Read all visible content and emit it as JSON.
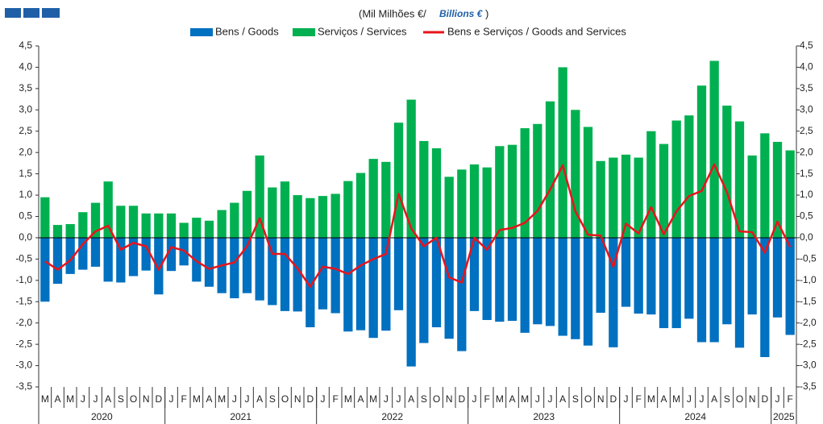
{
  "chart_data": {
    "type": "bar_line",
    "title": "(Mil Milhões  €/",
    "title_italic": "Billions €",
    "title_close": ")",
    "categories": [
      "M",
      "A",
      "M",
      "J",
      "J",
      "A",
      "S",
      "O",
      "N",
      "D",
      "J",
      "F",
      "M",
      "A",
      "M",
      "J",
      "J",
      "A",
      "S",
      "O",
      "N",
      "D",
      "J",
      "F",
      "M",
      "A",
      "M",
      "J",
      "J",
      "A",
      "S",
      "O",
      "N",
      "D",
      "J",
      "F",
      "M",
      "A",
      "M",
      "J",
      "J",
      "A",
      "S",
      "O",
      "N",
      "D",
      "J",
      "F",
      "M",
      "A",
      "M",
      "J",
      "J",
      "A",
      "S",
      "O",
      "N",
      "D",
      "J",
      "F"
    ],
    "years": [
      "2020",
      "2021",
      "2022",
      "2023",
      "2024",
      "2025"
    ],
    "series": [
      {
        "name": "Bens / Goods",
        "color": "#0070c0",
        "kind": "bar",
        "values": [
          -1.5,
          -1.08,
          -0.85,
          -0.75,
          -0.68,
          -1.03,
          -1.05,
          -0.9,
          -0.77,
          -1.33,
          -0.78,
          -0.65,
          -1.03,
          -1.15,
          -1.3,
          -1.42,
          -1.3,
          -1.47,
          -1.58,
          -1.72,
          -1.73,
          -2.1,
          -1.68,
          -1.77,
          -2.2,
          -2.17,
          -2.35,
          -2.18,
          -1.7,
          -3.02,
          -2.47,
          -2.1,
          -2.37,
          -2.66,
          -1.72,
          -1.93,
          -1.97,
          -1.95,
          -2.23,
          -2.03,
          -2.07,
          -2.3,
          -2.38,
          -2.53,
          -1.76,
          -2.57,
          -1.62,
          -1.78,
          -1.8,
          -2.12,
          -2.12,
          -1.9,
          -2.45,
          -2.45,
          -2.03,
          -2.58,
          -1.8,
          -2.8,
          -1.87,
          -2.28
        ]
      },
      {
        "name": "Serviços / Services",
        "color": "#00b050",
        "kind": "bar",
        "values": [
          0.95,
          0.3,
          0.32,
          0.6,
          0.82,
          1.32,
          0.75,
          0.75,
          0.57,
          0.57,
          0.57,
          0.35,
          0.47,
          0.4,
          0.65,
          0.82,
          1.1,
          1.93,
          1.18,
          1.32,
          1.0,
          0.93,
          0.98,
          1.03,
          1.33,
          1.52,
          1.85,
          1.78,
          2.7,
          3.24,
          2.27,
          2.1,
          1.43,
          1.6,
          1.72,
          1.65,
          2.15,
          2.18,
          2.57,
          2.67,
          3.2,
          4.0,
          3.0,
          2.6,
          1.8,
          1.88,
          1.95,
          1.88,
          2.5,
          2.2,
          2.75,
          2.87,
          3.57,
          4.15,
          3.1,
          2.73,
          1.93,
          2.45,
          2.25,
          2.05
        ]
      },
      {
        "name": "Bens e Serviços  / Goods and Services",
        "color": "#e8141b",
        "kind": "line",
        "values": [
          -0.55,
          -0.75,
          -0.53,
          -0.15,
          0.15,
          0.28,
          -0.28,
          -0.12,
          -0.2,
          -0.75,
          -0.22,
          -0.3,
          -0.55,
          -0.73,
          -0.65,
          -0.58,
          -0.2,
          0.46,
          -0.38,
          -0.38,
          -0.72,
          -1.15,
          -0.68,
          -0.73,
          -0.85,
          -0.65,
          -0.5,
          -0.38,
          1.03,
          0.22,
          -0.2,
          0.0,
          -0.93,
          -1.05,
          0.0,
          -0.28,
          0.18,
          0.23,
          0.35,
          0.63,
          1.13,
          1.7,
          0.62,
          0.07,
          0.05,
          -0.68,
          0.33,
          0.1,
          0.72,
          0.08,
          0.62,
          0.98,
          1.1,
          1.72,
          1.07,
          0.15,
          0.13,
          -0.35,
          0.38,
          -0.22
        ]
      }
    ],
    "ylim": [
      -3.5,
      4.5
    ],
    "yticks": [
      {
        "value": -3.5,
        "label": "-3,5"
      },
      {
        "value": -3,
        "label": "-3,0"
      },
      {
        "value": -2.5,
        "label": "-2,5"
      },
      {
        "value": -2,
        "label": "-2,0"
      },
      {
        "value": -1.5,
        "label": "-1,5"
      },
      {
        "value": -1,
        "label": "-1,0"
      },
      {
        "value": -0.5,
        "label": "-0,5"
      },
      {
        "value": 0,
        "label": "0,0"
      },
      {
        "value": 0.5,
        "label": "0,5"
      },
      {
        "value": 1,
        "label": "1,0"
      },
      {
        "value": 1.5,
        "label": "1,5"
      },
      {
        "value": 2,
        "label": "2,0"
      },
      {
        "value": 2.5,
        "label": "2,5"
      },
      {
        "value": 3,
        "label": "3,0"
      },
      {
        "value": 3.5,
        "label": "3,5"
      },
      {
        "value": 4,
        "label": "4,0"
      },
      {
        "value": 4.5,
        "label": "4,5"
      }
    ]
  }
}
